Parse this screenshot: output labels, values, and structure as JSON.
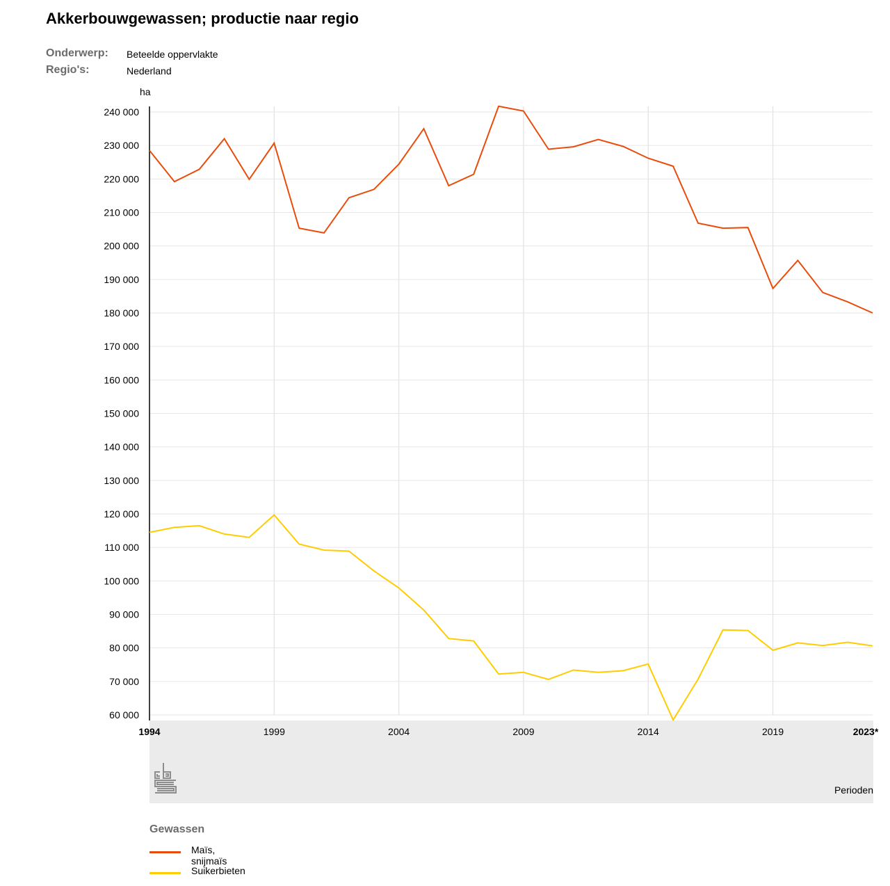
{
  "header": {
    "title": "Akkerbouwgewassen; productie naar regio",
    "meta": [
      {
        "key": "Onderwerp:",
        "value": "Beteelde oppervlakte"
      },
      {
        "key": "Regio's:",
        "value": "Nederland"
      }
    ]
  },
  "chart_data": {
    "type": "line",
    "title": "Akkerbouwgewassen; productie naar regio",
    "ylabel": "ha",
    "xlabel": "Perioden",
    "ylim": [
      60000,
      240000
    ],
    "xlim": [
      1994,
      2023
    ],
    "yticks": [
      60000,
      70000,
      80000,
      90000,
      100000,
      110000,
      120000,
      130000,
      140000,
      150000,
      160000,
      170000,
      180000,
      190000,
      200000,
      210000,
      220000,
      230000,
      240000
    ],
    "ytick_labels": [
      "60 000",
      "70 000",
      "80 000",
      "90 000",
      "100 000",
      "110 000",
      "120 000",
      "130 000",
      "140 000",
      "150 000",
      "160 000",
      "170 000",
      "180 000",
      "190 000",
      "200 000",
      "210 000",
      "220 000",
      "230 000",
      "240 000"
    ],
    "xticks": [
      1994,
      1999,
      2004,
      2009,
      2014,
      2019,
      2023
    ],
    "xtick_labels": [
      "1994",
      "1999",
      "2004",
      "2009",
      "2014",
      "2019",
      "2023*"
    ],
    "x": [
      1994,
      1995,
      1996,
      1997,
      1998,
      1999,
      2000,
      2001,
      2002,
      2003,
      2004,
      2005,
      2006,
      2007,
      2008,
      2009,
      2010,
      2011,
      2012,
      2013,
      2014,
      2015,
      2016,
      2017,
      2018,
      2019,
      2020,
      2021,
      2022,
      2023
    ],
    "series": [
      {
        "name": "Maïs, snijmaïs",
        "color": "#e94c0a",
        "values": [
          228500,
          219200,
          222900,
          232000,
          219900,
          230700,
          205300,
          203900,
          214400,
          216900,
          224400,
          235000,
          218000,
          221400,
          241700,
          240300,
          228900,
          229600,
          231800,
          229700,
          226200,
          223800,
          206800,
          205300,
          205500,
          187300,
          195700,
          186100,
          183300,
          180000
        ]
      },
      {
        "name": "Suikerbieten",
        "color": "#ffcc00",
        "values": [
          114500,
          116000,
          116500,
          114000,
          113000,
          119700,
          111000,
          109200,
          108900,
          103000,
          97900,
          91300,
          82800,
          82100,
          72200,
          72700,
          70600,
          73400,
          72700,
          73200,
          75200,
          58500,
          70700,
          85400,
          85200,
          79300,
          81500,
          80700,
          81700,
          80600
        ]
      }
    ],
    "grid": true,
    "legend_title": "Gewassen",
    "legend_position": "bottom-left"
  }
}
